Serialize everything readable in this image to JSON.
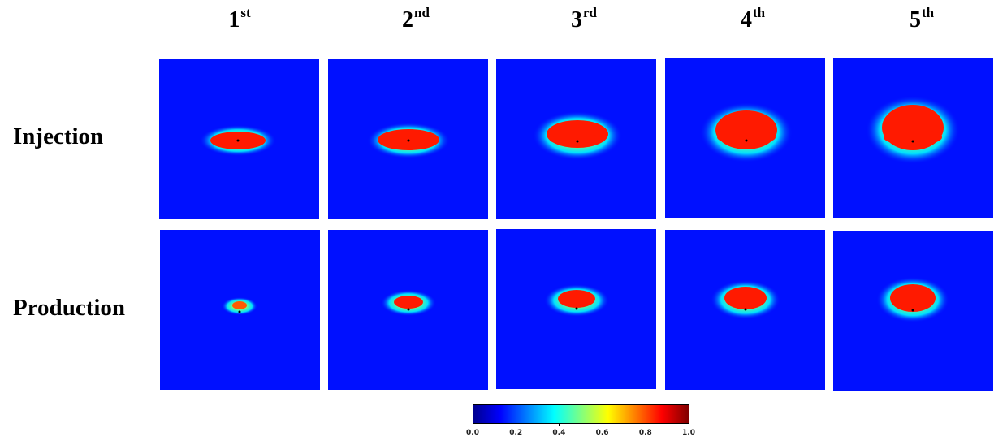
{
  "columns": [
    {
      "num": "1",
      "suffix": "st"
    },
    {
      "num": "2",
      "suffix": "nd"
    },
    {
      "num": "3",
      "suffix": "rd"
    },
    {
      "num": "4",
      "suffix": "th"
    },
    {
      "num": "5",
      "suffix": "th"
    }
  ],
  "rows": [
    {
      "label": "Injection"
    },
    {
      "label": "Production"
    }
  ],
  "colorbar": {
    "colormap": "jet",
    "range": [
      0.0,
      1.0
    ],
    "ticks": [
      "0.0",
      "0.2",
      "0.4",
      "0.6",
      "0.8",
      "1.0"
    ]
  },
  "colors": {
    "background": "#0010ff",
    "core": "#ff1a00",
    "well_marker": "#000000"
  }
}
